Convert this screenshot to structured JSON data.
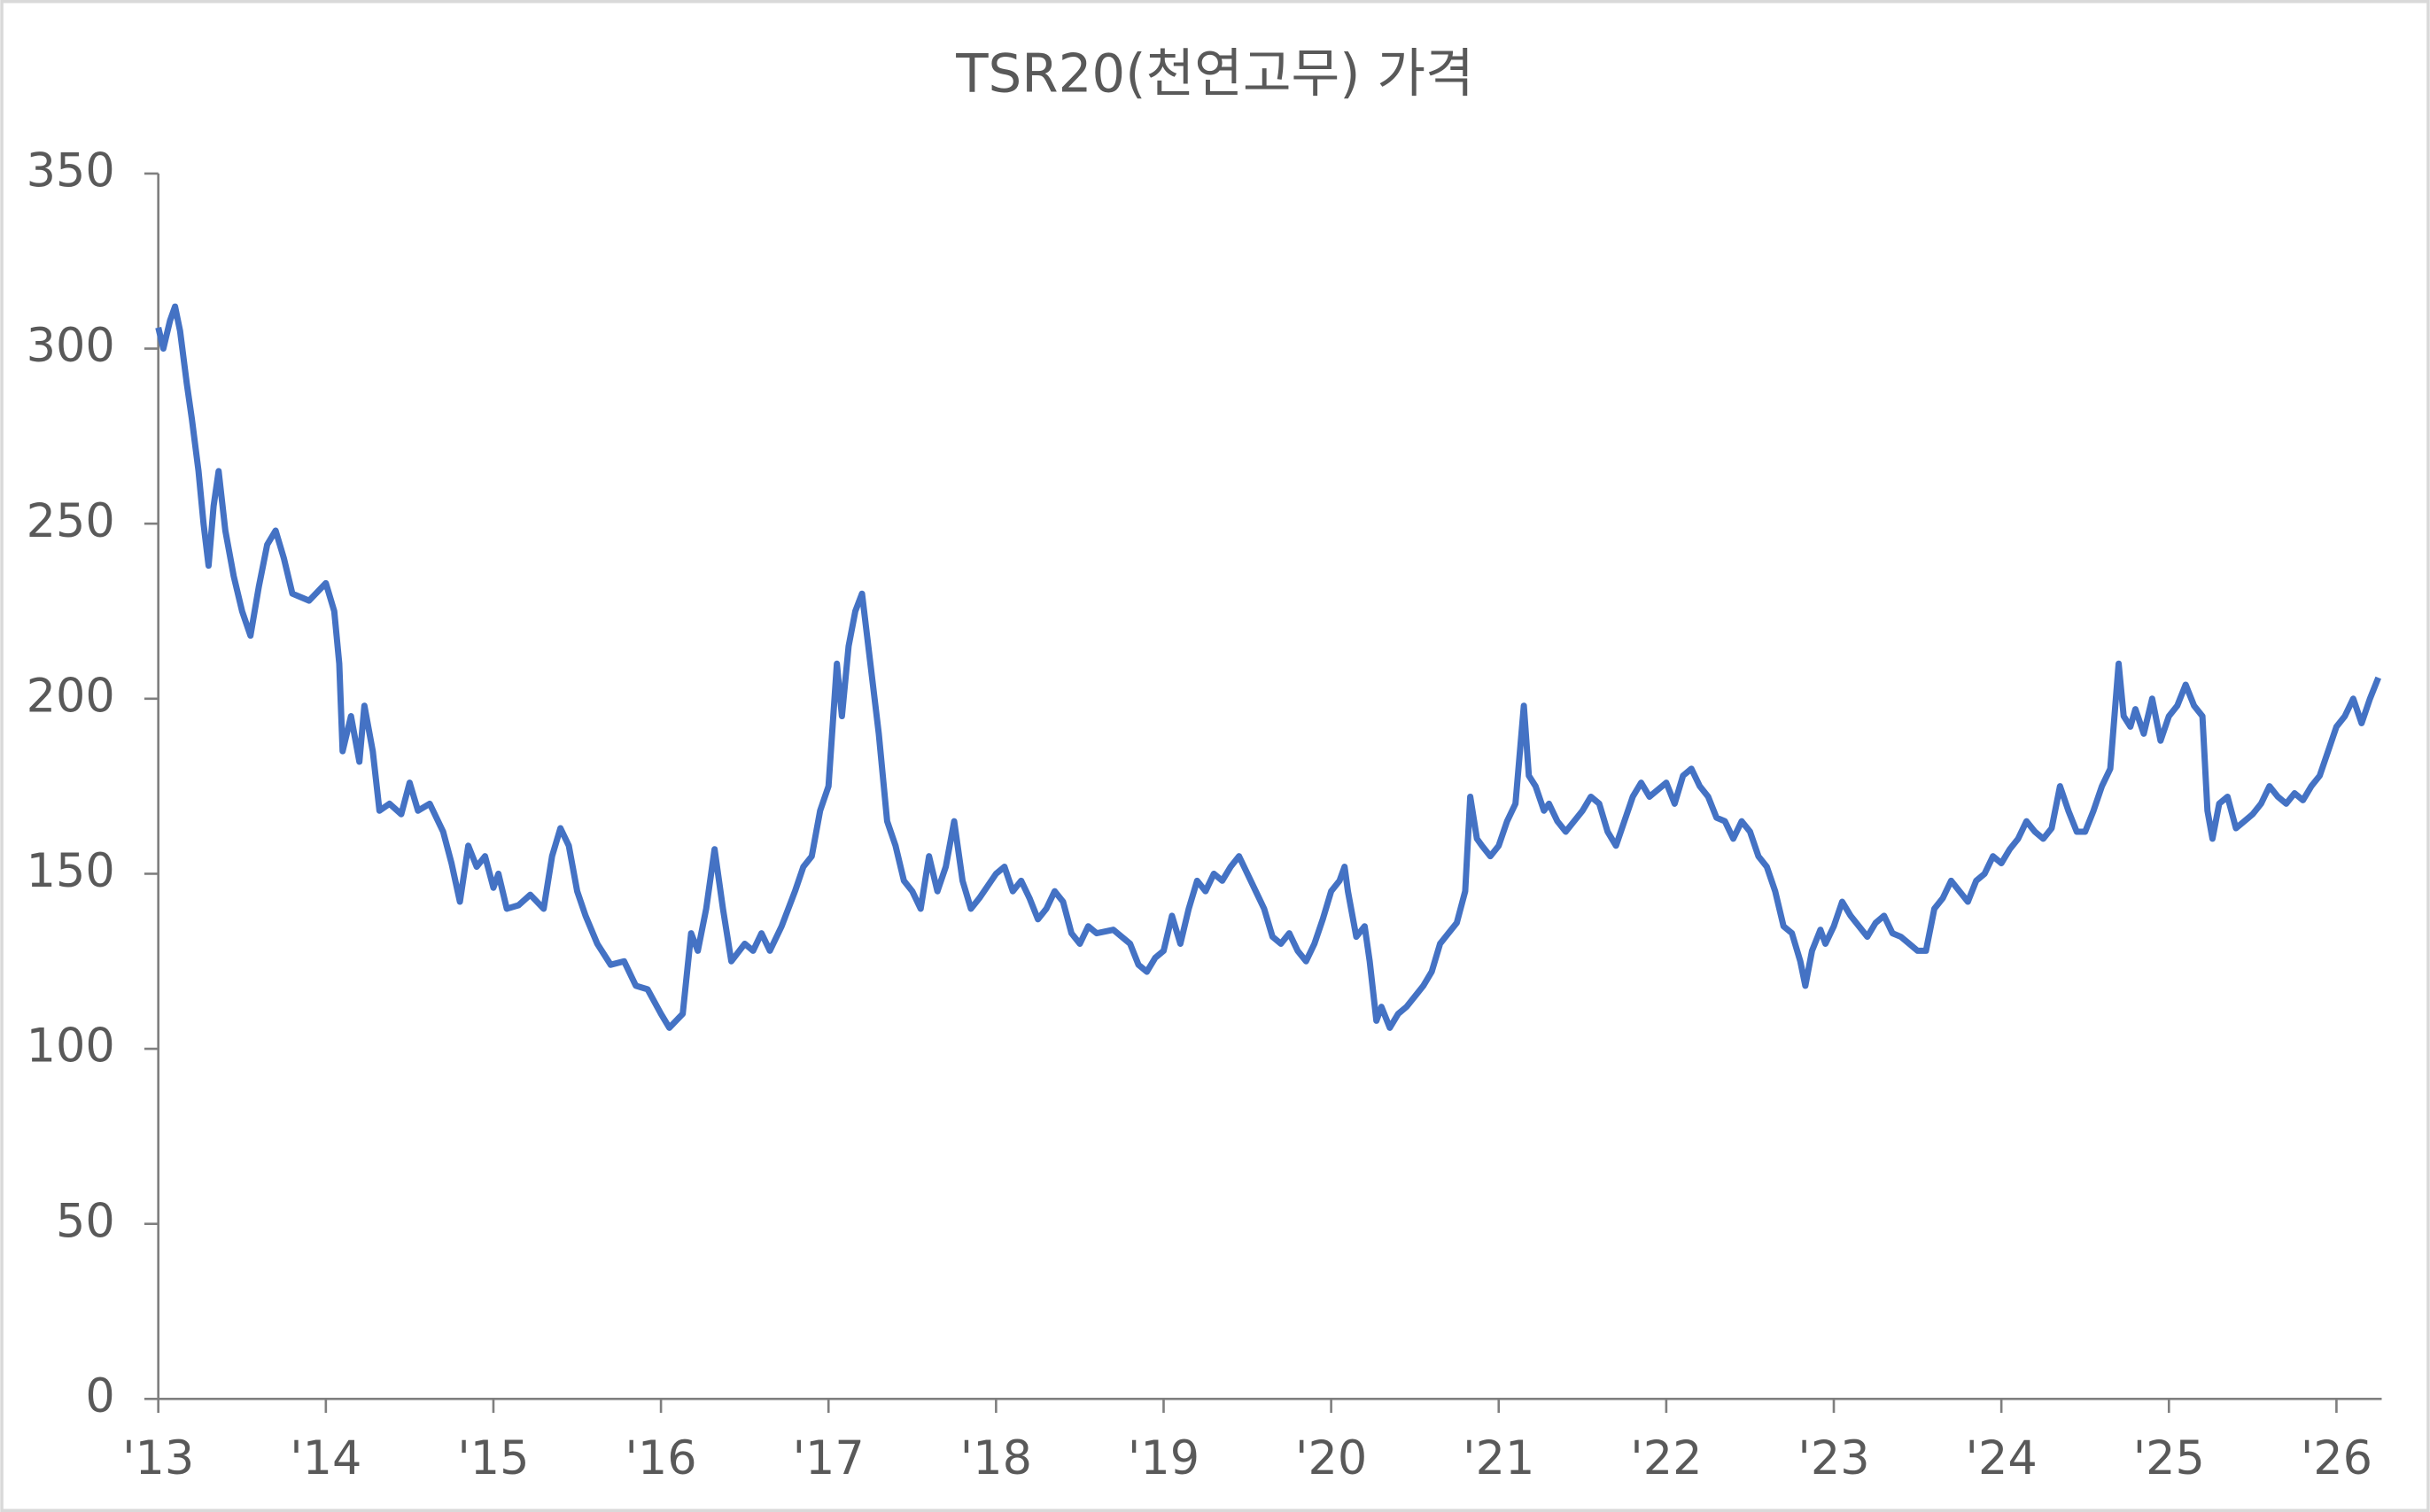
{
  "chart_data": {
    "type": "line",
    "title": "TSR20(천연고무) 가격",
    "x": [
      2013.0,
      2013.03,
      2013.07,
      2013.1,
      2013.13,
      2013.17,
      2013.2,
      2013.24,
      2013.27,
      2013.3,
      2013.33,
      2013.36,
      2013.4,
      2013.45,
      2013.5,
      2013.55,
      2013.6,
      2013.65,
      2013.7,
      2013.75,
      2013.8,
      2013.9,
      2014.0,
      2014.05,
      2014.08,
      2014.1,
      2014.15,
      2014.2,
      2014.23,
      2014.28,
      2014.32,
      2014.38,
      2014.45,
      2014.5,
      2014.55,
      2014.62,
      2014.7,
      2014.75,
      2014.8,
      2014.85,
      2014.9,
      2014.95,
      2015.0,
      2015.03,
      2015.08,
      2015.15,
      2015.22,
      2015.3,
      2015.35,
      2015.4,
      2015.45,
      2015.5,
      2015.55,
      2015.62,
      2015.7,
      2015.78,
      2015.85,
      2015.92,
      2016.0,
      2016.05,
      2016.13,
      2016.18,
      2016.22,
      2016.27,
      2016.32,
      2016.37,
      2016.42,
      2016.5,
      2016.55,
      2016.6,
      2016.65,
      2016.72,
      2016.8,
      2016.85,
      2016.9,
      2016.95,
      2017.0,
      2017.05,
      2017.08,
      2017.12,
      2017.16,
      2017.2,
      2017.25,
      2017.3,
      2017.35,
      2017.4,
      2017.45,
      2017.5,
      2017.55,
      2017.6,
      2017.65,
      2017.7,
      2017.75,
      2017.8,
      2017.85,
      2017.9,
      2018.0,
      2018.05,
      2018.1,
      2018.15,
      2018.2,
      2018.25,
      2018.3,
      2018.35,
      2018.4,
      2018.45,
      2018.5,
      2018.55,
      2018.6,
      2018.7,
      2018.8,
      2018.85,
      2018.9,
      2018.95,
      2019.0,
      2019.05,
      2019.1,
      2019.15,
      2019.2,
      2019.25,
      2019.3,
      2019.35,
      2019.4,
      2019.45,
      2019.5,
      2019.55,
      2019.6,
      2019.65,
      2019.7,
      2019.75,
      2019.8,
      2019.85,
      2019.9,
      2019.95,
      2020.0,
      2020.05,
      2020.08,
      2020.1,
      2020.15,
      2020.2,
      2020.23,
      2020.27,
      2020.3,
      2020.35,
      2020.4,
      2020.45,
      2020.5,
      2020.55,
      2020.6,
      2020.65,
      2020.7,
      2020.75,
      2020.8,
      2020.83,
      2020.87,
      2020.9,
      2020.95,
      2021.0,
      2021.05,
      2021.1,
      2021.15,
      2021.18,
      2021.22,
      2021.27,
      2021.3,
      2021.35,
      2021.4,
      2021.5,
      2021.55,
      2021.6,
      2021.65,
      2021.7,
      2021.8,
      2021.85,
      2021.9,
      2022.0,
      2022.05,
      2022.1,
      2022.15,
      2022.2,
      2022.25,
      2022.3,
      2022.35,
      2022.4,
      2022.45,
      2022.5,
      2022.55,
      2022.6,
      2022.65,
      2022.7,
      2022.75,
      2022.8,
      2022.83,
      2022.87,
      2022.92,
      2022.95,
      2023.0,
      2023.05,
      2023.1,
      2023.15,
      2023.2,
      2023.25,
      2023.3,
      2023.35,
      2023.4,
      2023.45,
      2023.5,
      2023.55,
      2023.6,
      2023.65,
      2023.7,
      2023.75,
      2023.8,
      2023.85,
      2023.9,
      2023.95,
      2024.0,
      2024.05,
      2024.1,
      2024.15,
      2024.2,
      2024.25,
      2024.3,
      2024.35,
      2024.4,
      2024.45,
      2024.5,
      2024.55,
      2024.6,
      2024.65,
      2024.7,
      2024.73,
      2024.77,
      2024.8,
      2024.85,
      2024.9,
      2024.95,
      2025.0,
      2025.05,
      2025.1,
      2025.15,
      2025.2,
      2025.23,
      2025.26,
      2025.3,
      2025.35,
      2025.4,
      2025.45,
      2025.5,
      2025.55,
      2025.6,
      2025.65,
      2025.7,
      2025.75,
      2025.8,
      2025.85,
      2025.9,
      2025.95,
      2026.0,
      2026.05,
      2026.1,
      2026.15,
      2026.2,
      2026.25
    ],
    "series": [
      {
        "color": "#4472c4",
        "values": [
          306,
          300,
          308,
          312,
          305,
          290,
          280,
          265,
          250,
          238,
          255,
          265,
          248,
          235,
          225,
          218,
          232,
          244,
          248,
          240,
          230,
          228,
          233,
          225,
          210,
          185,
          195,
          182,
          198,
          185,
          168,
          170,
          167,
          176,
          168,
          170,
          162,
          153,
          142,
          158,
          152,
          155,
          146,
          150,
          140,
          141,
          144,
          140,
          155,
          163,
          158,
          145,
          138,
          130,
          124,
          125,
          118,
          117,
          110,
          106,
          110,
          133,
          128,
          140,
          157,
          140,
          125,
          130,
          128,
          133,
          128,
          135,
          145,
          152,
          155,
          168,
          175,
          210,
          195,
          215,
          225,
          230,
          210,
          190,
          165,
          158,
          148,
          145,
          140,
          155,
          145,
          152,
          165,
          148,
          140,
          143,
          150,
          152,
          145,
          148,
          143,
          137,
          140,
          145,
          142,
          133,
          130,
          135,
          133,
          134,
          130,
          124,
          122,
          126,
          128,
          138,
          130,
          140,
          148,
          145,
          150,
          148,
          152,
          155,
          150,
          145,
          140,
          132,
          130,
          133,
          128,
          125,
          130,
          137,
          145,
          148,
          152,
          145,
          132,
          135,
          125,
          108,
          112,
          106,
          110,
          112,
          115,
          118,
          122,
          130,
          133,
          136,
          145,
          172,
          160,
          158,
          155,
          158,
          165,
          170,
          198,
          178,
          175,
          168,
          170,
          165,
          162,
          168,
          172,
          170,
          162,
          158,
          172,
          176,
          172,
          176,
          170,
          178,
          180,
          175,
          172,
          166,
          165,
          160,
          165,
          162,
          155,
          152,
          145,
          135,
          133,
          125,
          118,
          128,
          134,
          130,
          135,
          142,
          138,
          135,
          132,
          136,
          138,
          133,
          132,
          130,
          128,
          128,
          140,
          143,
          148,
          145,
          142,
          148,
          150,
          155,
          153,
          157,
          160,
          165,
          162,
          160,
          163,
          175,
          168,
          162,
          162,
          168,
          175,
          180,
          210,
          195,
          192,
          197,
          190,
          200,
          188,
          195,
          198,
          204,
          198,
          195,
          168,
          160,
          170,
          172,
          163,
          165,
          167,
          170,
          175,
          172,
          170,
          173,
          171,
          175,
          178,
          185,
          192,
          195,
          200,
          193,
          200,
          206
        ]
      }
    ],
    "xlim": [
      2013,
      2026.27
    ],
    "xticks": [
      {
        "value": 2013,
        "label": "'13"
      },
      {
        "value": 2014,
        "label": "'14"
      },
      {
        "value": 2015,
        "label": "'15"
      },
      {
        "value": 2016,
        "label": "'16"
      },
      {
        "value": 2017,
        "label": "'17"
      },
      {
        "value": 2018,
        "label": "'18"
      },
      {
        "value": 2019,
        "label": "'19"
      },
      {
        "value": 2020,
        "label": "'20"
      },
      {
        "value": 2021,
        "label": "'21"
      },
      {
        "value": 2022,
        "label": "'22"
      },
      {
        "value": 2023,
        "label": "'23"
      },
      {
        "value": 2024,
        "label": "'24"
      },
      {
        "value": 2025,
        "label": "'25"
      },
      {
        "value": 2026,
        "label": "'26"
      }
    ],
    "ylim": [
      0,
      350
    ],
    "yticks": [
      0,
      50,
      100,
      150,
      200,
      250,
      300,
      350
    ],
    "grid": false
  }
}
